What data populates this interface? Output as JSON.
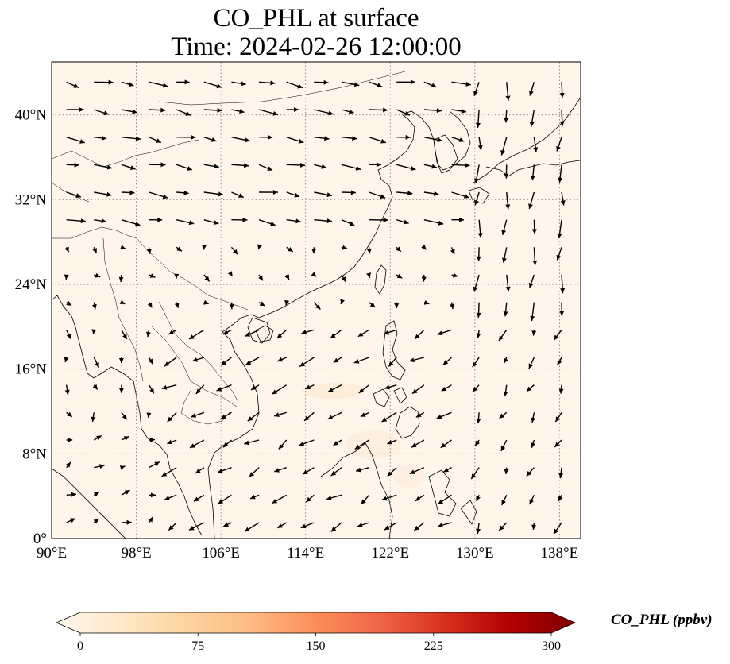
{
  "title": {
    "line1": "CO_PHL at surface",
    "line2": "Time: 2024-02-26 12:00:00"
  },
  "map": {
    "lon_range": [
      90,
      140
    ],
    "lat_range": [
      0,
      45
    ],
    "lon_ticks": [
      "90°E",
      "98°E",
      "106°E",
      "114°E",
      "122°E",
      "130°E",
      "138°E"
    ],
    "lat_ticks": [
      "0°",
      "8°N",
      "16°N",
      "24°N",
      "32°N",
      "40°N"
    ],
    "lon_values": [
      90,
      98,
      106,
      114,
      122,
      130,
      138
    ],
    "lat_values": [
      0,
      8,
      16,
      24,
      32,
      40
    ],
    "background_color": "#fff5ea",
    "gridlines": "dotted"
  },
  "colorbar": {
    "label": "CO_PHL (ppbv)",
    "ticks": [
      "0",
      "75",
      "150",
      "225",
      "300"
    ],
    "tick_values": [
      0,
      75,
      150,
      225,
      300
    ],
    "range": [
      0,
      300
    ],
    "extend": "both",
    "colormap": "OrRd",
    "colors": [
      "#fff7ec",
      "#fee8c8",
      "#fdd49e",
      "#fdbb84",
      "#fc8d59",
      "#ef6548",
      "#d7301f",
      "#b30000",
      "#7f0000"
    ]
  }
}
